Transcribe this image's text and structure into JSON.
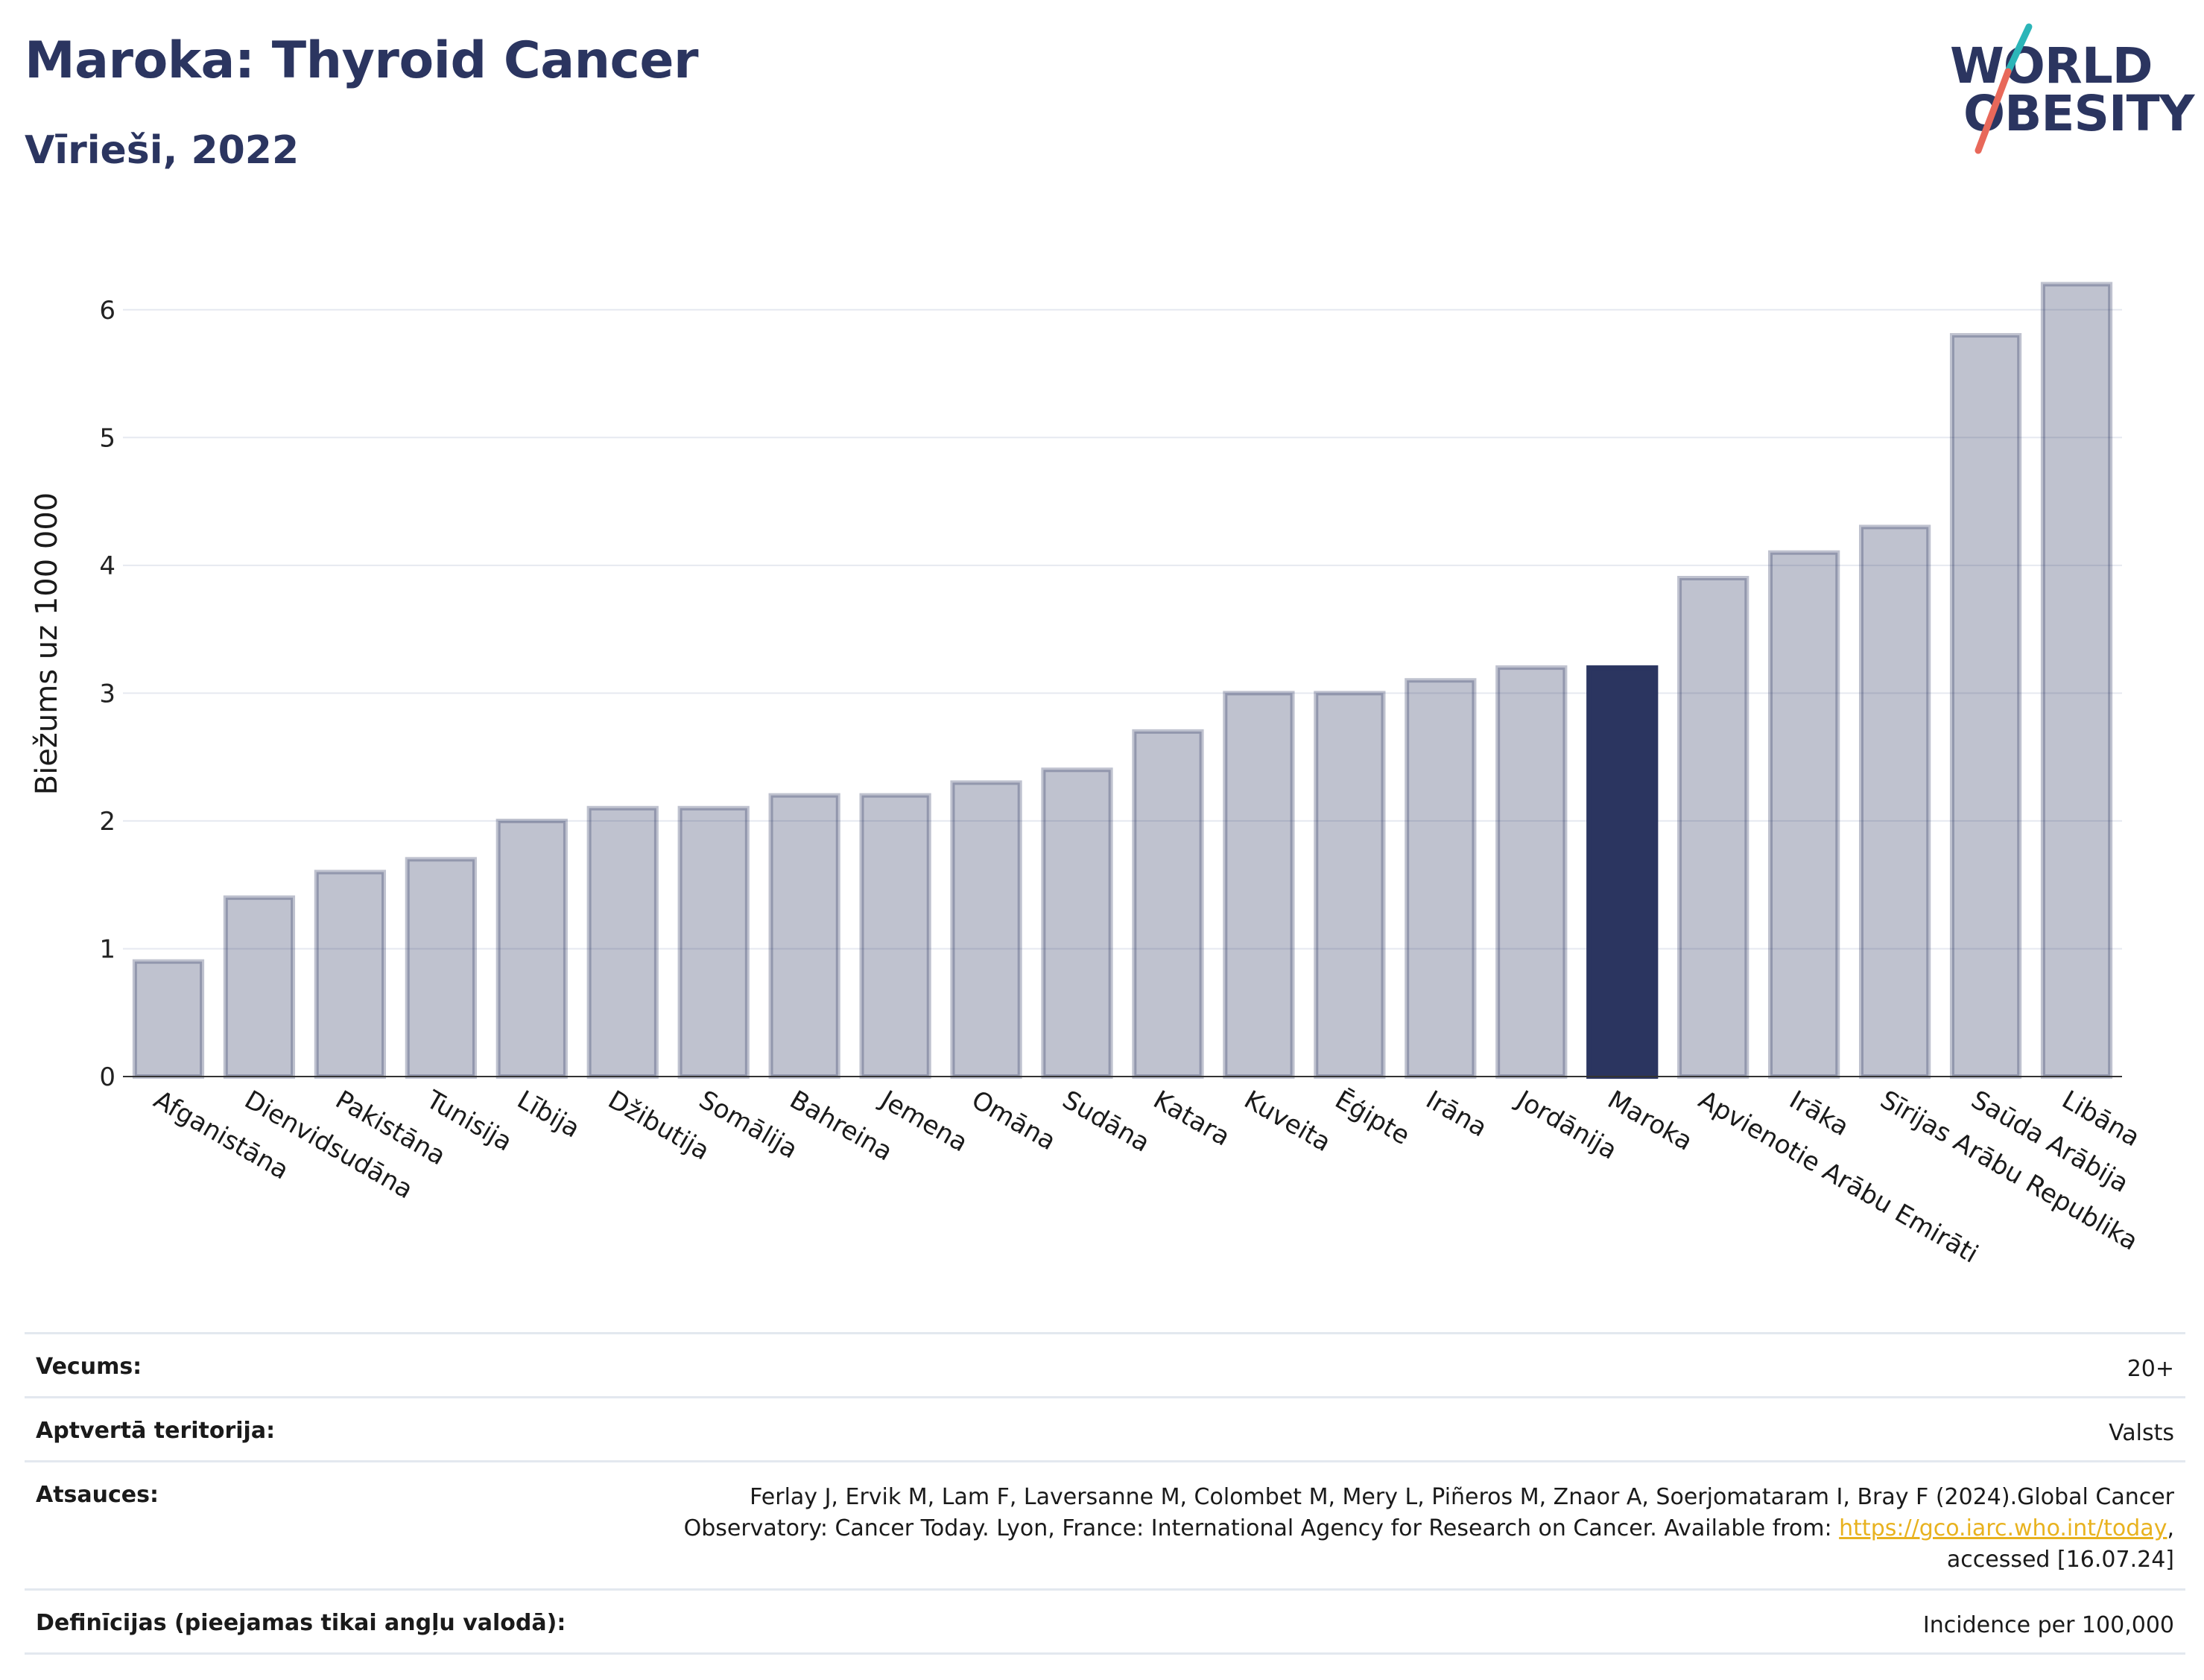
{
  "header": {
    "title": "Maroka: Thyroid Cancer",
    "subtitle": "Vīrieši, 2022"
  },
  "logo": {
    "line1": "WORLD",
    "line2": "OBESITY"
  },
  "colors": {
    "title": "#2b3560",
    "bar": "#2b3560",
    "bar_muted": "#2b3560",
    "link": "#e8b21f",
    "logo_slash_top": "#2bb5b8",
    "logo_slash_bottom": "#e8685a"
  },
  "chart_data": {
    "type": "bar",
    "ylabel": "Biežums uz 100 000",
    "ylim": [
      0,
      6.5
    ],
    "yticks": [
      0,
      1,
      2,
      3,
      4,
      5,
      6
    ],
    "grid": true,
    "highlight": "Maroka",
    "categories": [
      "Afganistāna",
      "Dienvidsudāna",
      "Pakistāna",
      "Tunisija",
      "Lībija",
      "Džibutija",
      "Somālija",
      "Bahreina",
      "Jemena",
      "Omāna",
      "Sudāna",
      "Katara",
      "Kuveita",
      "Ēģipte",
      "Irāna",
      "Jordānija",
      "Maroka",
      "Apvienotie Arābu Emirāti",
      "Irāka",
      "Sīrijas Arābu Republika",
      "Saūda Arābija",
      "Libāna"
    ],
    "values": [
      0.9,
      1.4,
      1.6,
      1.7,
      2.0,
      2.1,
      2.1,
      2.2,
      2.2,
      2.3,
      2.4,
      2.7,
      3.0,
      3.0,
      3.1,
      3.2,
      3.2,
      3.9,
      4.1,
      4.3,
      5.8,
      6.2
    ]
  },
  "footer": {
    "rows": [
      {
        "label": "Vecums:",
        "value": "20+"
      },
      {
        "label": "Aptvertā teritorija:",
        "value": "Valsts"
      },
      {
        "label": "Atsauces:",
        "value_line1": "Ferlay J, Ervik M, Lam F, Laversanne M, Colombet M, Mery L, Piñeros M, Znaor A, Soerjomataram I, Bray F (2024).Global Cancer",
        "value_line2_pre": "Observatory: Cancer Today. Lyon, France: International Agency for Research on Cancer. Available from: ",
        "link": "https://gco.iarc.who.int/today",
        "value_line2_post": ",",
        "value_line3": "accessed [16.07.24]"
      },
      {
        "label": "Definīcijas (pieejamas tikai angļu valodā):",
        "value": "Incidence per 100,000"
      }
    ]
  }
}
